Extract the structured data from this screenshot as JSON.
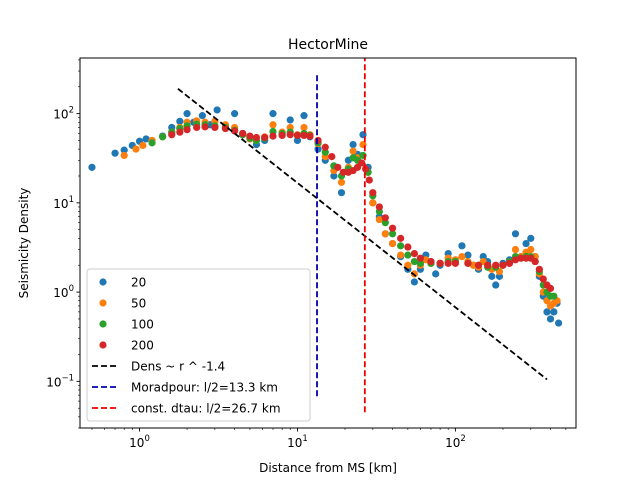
{
  "chart_data": {
    "type": "scatter",
    "title": "HectorMine",
    "xlabel": "Distance from MS [km]",
    "ylabel": "Seismicity Density",
    "xscale": "log",
    "yscale": "log",
    "xlim": [
      0.42,
      580
    ],
    "ylim": [
      0.03,
      420
    ],
    "x_ticks": [
      {
        "value": 1,
        "base": "10",
        "exp": "0"
      },
      {
        "value": 10,
        "base": "10",
        "exp": "1"
      },
      {
        "value": 100,
        "base": "10",
        "exp": "2"
      }
    ],
    "y_ticks": [
      {
        "value": 0.1,
        "base": "10",
        "exp": "−1"
      },
      {
        "value": 1,
        "base": "10",
        "exp": "0"
      },
      {
        "value": 10,
        "base": "10",
        "exp": "1"
      },
      {
        "value": 100,
        "base": "10",
        "exp": "2"
      }
    ],
    "legend_position": "lower-left",
    "grid": false,
    "series": [
      {
        "name": "20",
        "color": "#1f77b4",
        "points": [
          [
            0.5,
            25
          ],
          [
            0.7,
            36
          ],
          [
            0.8,
            39
          ],
          [
            0.9,
            44
          ],
          [
            1.0,
            49
          ],
          [
            1.1,
            52
          ],
          [
            1.2,
            50
          ],
          [
            1.4,
            56
          ],
          [
            1.6,
            70
          ],
          [
            1.8,
            82
          ],
          [
            2.0,
            100
          ],
          [
            2.2,
            80
          ],
          [
            2.5,
            95
          ],
          [
            2.8,
            75
          ],
          [
            3.1,
            110
          ],
          [
            3.5,
            70
          ],
          [
            4.0,
            100
          ],
          [
            4.5,
            60
          ],
          [
            5.0,
            55
          ],
          [
            5.5,
            45
          ],
          [
            6.2,
            50
          ],
          [
            7.0,
            100
          ],
          [
            8.0,
            60
          ],
          [
            9.0,
            85
          ],
          [
            10.0,
            50
          ],
          [
            11.0,
            95
          ],
          [
            12.0,
            55
          ],
          [
            13.5,
            40
          ],
          [
            15.0,
            30
          ],
          [
            17.0,
            20
          ],
          [
            19.0,
            13
          ],
          [
            21.0,
            30
          ],
          [
            22.5,
            45
          ],
          [
            24.0,
            35
          ],
          [
            26.0,
            58
          ],
          [
            28.0,
            25
          ],
          [
            30.0,
            10
          ],
          [
            33.0,
            7
          ],
          [
            36.0,
            4.5
          ],
          [
            40.0,
            3.5
          ],
          [
            45.0,
            2.5
          ],
          [
            50.0,
            1.8
          ],
          [
            55.0,
            1.3
          ],
          [
            60.0,
            1.8
          ],
          [
            65.0,
            2.6
          ],
          [
            70.0,
            2.2
          ],
          [
            75.0,
            1.6
          ],
          [
            80.0,
            2.0
          ],
          [
            90.0,
            2.7
          ],
          [
            100.0,
            2.3
          ],
          [
            110.0,
            3.3
          ],
          [
            120.0,
            2.6
          ],
          [
            130.0,
            2.0
          ],
          [
            140.0,
            1.8
          ],
          [
            150.0,
            2.5
          ],
          [
            160.0,
            2.2
          ],
          [
            170.0,
            1.5
          ],
          [
            180.0,
            1.2
          ],
          [
            190.0,
            1.5
          ],
          [
            200.0,
            2.1
          ],
          [
            220.0,
            2.3
          ],
          [
            240.0,
            4.5
          ],
          [
            260.0,
            2.5
          ],
          [
            280.0,
            3.5
          ],
          [
            300.0,
            4.0
          ],
          [
            320.0,
            2.5
          ],
          [
            340.0,
            1.5
          ],
          [
            360.0,
            0.9
          ],
          [
            380.0,
            0.6
          ],
          [
            400.0,
            0.5
          ],
          [
            420.0,
            0.6
          ],
          [
            440.0,
            0.75
          ],
          [
            450.0,
            0.45
          ]
        ]
      },
      {
        "name": "50",
        "color": "#ff7f0e",
        "points": [
          [
            0.8,
            34
          ],
          [
            0.95,
            40
          ],
          [
            1.05,
            44
          ],
          [
            1.2,
            50
          ],
          [
            1.4,
            55
          ],
          [
            1.6,
            62
          ],
          [
            1.8,
            70
          ],
          [
            2.0,
            80
          ],
          [
            2.3,
            83
          ],
          [
            2.6,
            80
          ],
          [
            3.0,
            82
          ],
          [
            3.5,
            75
          ],
          [
            4.0,
            70
          ],
          [
            4.5,
            58
          ],
          [
            5.0,
            52
          ],
          [
            5.5,
            50
          ],
          [
            6.2,
            55
          ],
          [
            7.0,
            75
          ],
          [
            8.0,
            62
          ],
          [
            9.0,
            70
          ],
          [
            10.0,
            58
          ],
          [
            11.0,
            70
          ],
          [
            12.0,
            58
          ],
          [
            13.5,
            46
          ],
          [
            15.0,
            33
          ],
          [
            17.0,
            23
          ],
          [
            19.0,
            17
          ],
          [
            21.0,
            25
          ],
          [
            22.5,
            38
          ],
          [
            24.0,
            32
          ],
          [
            26.0,
            45
          ],
          [
            28.0,
            22
          ],
          [
            30.0,
            10
          ],
          [
            33.0,
            6.5
          ],
          [
            36.0,
            4.5
          ],
          [
            40.0,
            3.5
          ],
          [
            45.0,
            2.6
          ],
          [
            50.0,
            2.0
          ],
          [
            55.0,
            1.6
          ],
          [
            60.0,
            2.0
          ],
          [
            65.0,
            2.3
          ],
          [
            70.0,
            2.1
          ],
          [
            80.0,
            2.1
          ],
          [
            90.0,
            2.4
          ],
          [
            100.0,
            2.3
          ],
          [
            110.0,
            2.5
          ],
          [
            120.0,
            2.2
          ],
          [
            130.0,
            2.0
          ],
          [
            140.0,
            1.9
          ],
          [
            150.0,
            2.2
          ],
          [
            170.0,
            1.8
          ],
          [
            190.0,
            1.7
          ],
          [
            200.0,
            2.0
          ],
          [
            220.0,
            2.2
          ],
          [
            240.0,
            3.0
          ],
          [
            260.0,
            2.5
          ],
          [
            280.0,
            2.8
          ],
          [
            300.0,
            3.0
          ],
          [
            320.0,
            2.5
          ],
          [
            340.0,
            1.6
          ],
          [
            360.0,
            1.0
          ],
          [
            380.0,
            0.8
          ],
          [
            400.0,
            0.7
          ],
          [
            420.0,
            0.75
          ],
          [
            440.0,
            0.8
          ]
        ]
      },
      {
        "name": "100",
        "color": "#2ca02c",
        "points": [
          [
            1.2,
            47
          ],
          [
            1.4,
            55
          ],
          [
            1.6,
            62
          ],
          [
            1.8,
            68
          ],
          [
            2.0,
            73
          ],
          [
            2.3,
            76
          ],
          [
            2.6,
            75
          ],
          [
            3.0,
            73
          ],
          [
            3.5,
            70
          ],
          [
            4.0,
            65
          ],
          [
            4.5,
            58
          ],
          [
            5.0,
            53
          ],
          [
            5.5,
            50
          ],
          [
            6.2,
            53
          ],
          [
            7.0,
            63
          ],
          [
            8.0,
            60
          ],
          [
            9.0,
            62
          ],
          [
            10.0,
            57
          ],
          [
            11.0,
            60
          ],
          [
            12.0,
            57
          ],
          [
            13.5,
            47
          ],
          [
            15.0,
            37
          ],
          [
            17.0,
            26
          ],
          [
            19.0,
            20
          ],
          [
            21.0,
            24
          ],
          [
            22.5,
            32
          ],
          [
            24.0,
            30
          ],
          [
            26.0,
            34
          ],
          [
            28.0,
            22
          ],
          [
            30.0,
            12
          ],
          [
            33.0,
            8
          ],
          [
            36.0,
            6
          ],
          [
            40.0,
            4.5
          ],
          [
            45.0,
            3.3
          ],
          [
            50.0,
            2.6
          ],
          [
            55.0,
            2.2
          ],
          [
            60.0,
            2.1
          ],
          [
            70.0,
            2.1
          ],
          [
            80.0,
            2.1
          ],
          [
            90.0,
            2.2
          ],
          [
            100.0,
            2.2
          ],
          [
            120.0,
            2.1
          ],
          [
            140.0,
            2.0
          ],
          [
            160.0,
            1.9
          ],
          [
            180.0,
            1.9
          ],
          [
            200.0,
            2.0
          ],
          [
            220.0,
            2.2
          ],
          [
            240.0,
            2.5
          ],
          [
            260.0,
            2.4
          ],
          [
            280.0,
            2.5
          ],
          [
            300.0,
            2.5
          ],
          [
            320.0,
            2.2
          ],
          [
            340.0,
            1.7
          ],
          [
            360.0,
            1.2
          ],
          [
            380.0,
            1.0
          ],
          [
            400.0,
            0.9
          ],
          [
            420.0,
            0.9
          ]
        ]
      },
      {
        "name": "200",
        "color": "#d62728",
        "points": [
          [
            1.6,
            58
          ],
          [
            1.8,
            62
          ],
          [
            2.0,
            66
          ],
          [
            2.3,
            70
          ],
          [
            2.6,
            71
          ],
          [
            3.0,
            70
          ],
          [
            3.5,
            68
          ],
          [
            4.0,
            64
          ],
          [
            4.5,
            60
          ],
          [
            5.0,
            56
          ],
          [
            5.5,
            54
          ],
          [
            6.2,
            54
          ],
          [
            7.0,
            56
          ],
          [
            8.0,
            57
          ],
          [
            9.0,
            58
          ],
          [
            10.0,
            57
          ],
          [
            11.0,
            57
          ],
          [
            12.0,
            56
          ],
          [
            13.5,
            50
          ],
          [
            15.0,
            42
          ],
          [
            16.5,
            33
          ],
          [
            18.0,
            25
          ],
          [
            19.5,
            22
          ],
          [
            21.0,
            22
          ],
          [
            22.5,
            23
          ],
          [
            24.0,
            25
          ],
          [
            25.5,
            28
          ],
          [
            27.0,
            24
          ],
          [
            28.5,
            18
          ],
          [
            30.0,
            13
          ],
          [
            33.0,
            9
          ],
          [
            36.0,
            6.8
          ],
          [
            40.0,
            5.2
          ],
          [
            45.0,
            4.0
          ],
          [
            50.0,
            3.2
          ],
          [
            55.0,
            2.7
          ],
          [
            60.0,
            2.4
          ],
          [
            70.0,
            2.2
          ],
          [
            80.0,
            2.1
          ],
          [
            90.0,
            2.1
          ],
          [
            100.0,
            2.1
          ],
          [
            120.0,
            2.1
          ],
          [
            140.0,
            2.0
          ],
          [
            160.0,
            2.0
          ],
          [
            180.0,
            2.0
          ],
          [
            200.0,
            2.0
          ],
          [
            220.0,
            2.1
          ],
          [
            240.0,
            2.3
          ],
          [
            260.0,
            2.4
          ],
          [
            280.0,
            2.4
          ],
          [
            300.0,
            2.4
          ],
          [
            320.0,
            2.2
          ],
          [
            340.0,
            1.8
          ],
          [
            360.0,
            1.4
          ],
          [
            380.0,
            1.2
          ],
          [
            400.0,
            1.1
          ]
        ]
      }
    ],
    "lines": [
      {
        "name": "Dens ~ r ^ -1.4",
        "color": "#000000",
        "x1": 1.75,
        "y1": 190,
        "x2": 380,
        "y2": 0.105
      },
      {
        "name": "Moradpour: l/2=13.3 km",
        "color": "#0000aa",
        "x": 13.3,
        "y1": 0.068,
        "y2": 290
      },
      {
        "name": "const. dtau: l/2=26.7 km",
        "color": "#ee0000",
        "x": 26.7,
        "y1": 0.045,
        "y2": 430
      }
    ],
    "legend": [
      {
        "label": "20",
        "color": "#1f77b4",
        "kind": "marker"
      },
      {
        "label": "50",
        "color": "#ff7f0e",
        "kind": "marker"
      },
      {
        "label": "100",
        "color": "#2ca02c",
        "kind": "marker"
      },
      {
        "label": "200",
        "color": "#d62728",
        "kind": "marker"
      },
      {
        "label": "Dens ~ r ^ -1.4",
        "color": "#000000",
        "kind": "dashed"
      },
      {
        "label": "Moradpour: l/2=13.3 km",
        "color": "#0000aa",
        "kind": "dashed"
      },
      {
        "label": "const. dtau: l/2=26.7 km",
        "color": "#ee0000",
        "kind": "dashed"
      }
    ]
  }
}
